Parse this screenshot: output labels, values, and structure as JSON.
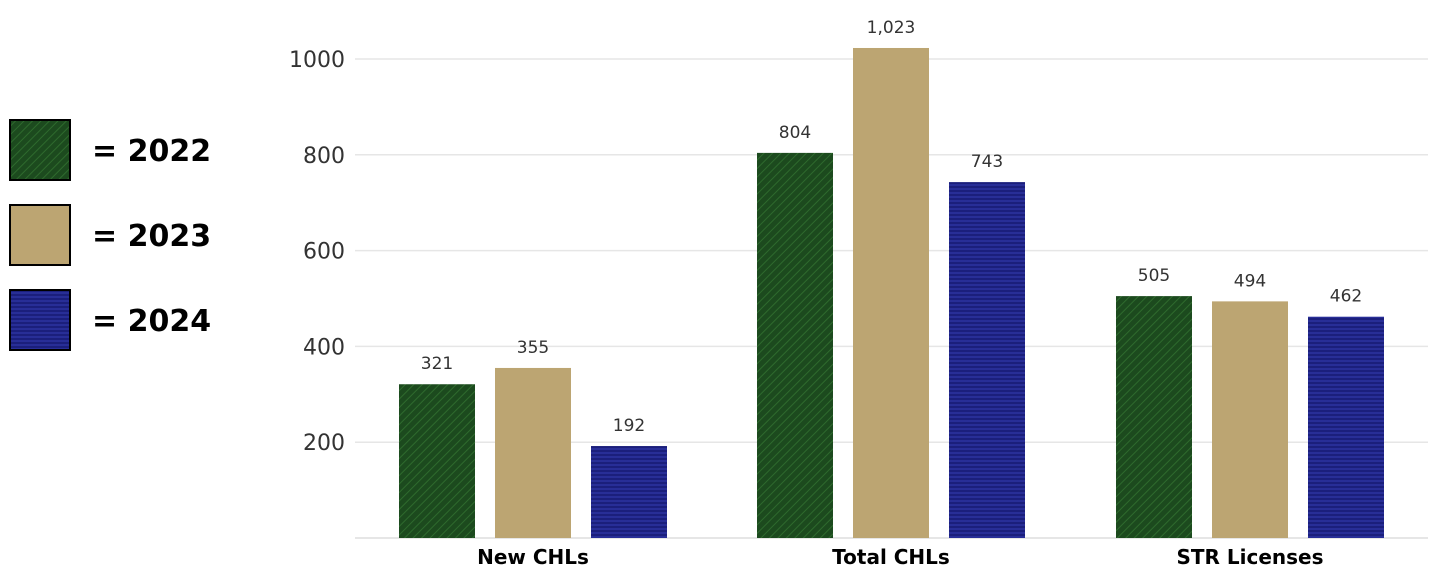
{
  "chart_data": {
    "type": "bar",
    "categories": [
      "New CHLs",
      "Total CHLs",
      "STR Licenses"
    ],
    "series": [
      {
        "legend_label": "= 2022",
        "values": [
          321,
          804,
          505
        ],
        "value_labels": [
          "321",
          "804",
          "505"
        ],
        "color": "#1c4a1e"
      },
      {
        "legend_label": "= 2023",
        "values": [
          355,
          1023,
          494
        ],
        "value_labels": [
          "355",
          "1,023",
          "494"
        ],
        "color": "#bca572"
      },
      {
        "legend_label": "= 2024",
        "values": [
          192,
          743,
          462
        ],
        "value_labels": [
          "192",
          "743",
          "462"
        ],
        "color": "#1b1f7c"
      }
    ],
    "yticks": [
      200,
      400,
      600,
      800,
      1000
    ],
    "ylim": [
      0,
      1000
    ],
    "grid": true,
    "legend_position": "left"
  }
}
